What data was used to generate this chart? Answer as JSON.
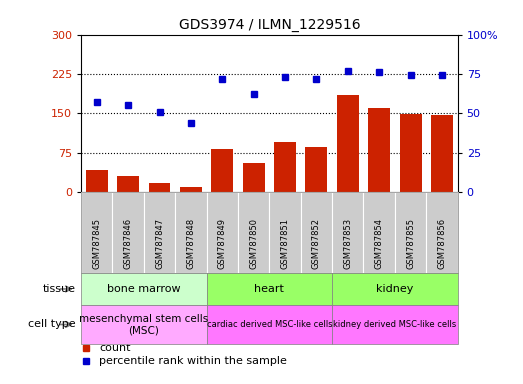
{
  "title": "GDS3974 / ILMN_1229516",
  "samples": [
    "GSM787845",
    "GSM787846",
    "GSM787847",
    "GSM787848",
    "GSM787849",
    "GSM787850",
    "GSM787851",
    "GSM787852",
    "GSM787853",
    "GSM787854",
    "GSM787855",
    "GSM787856"
  ],
  "counts": [
    42,
    30,
    18,
    10,
    82,
    55,
    95,
    85,
    185,
    160,
    148,
    147
  ],
  "percentiles": [
    57,
    55,
    51,
    44,
    72,
    62,
    73,
    72,
    77,
    76,
    74,
    74
  ],
  "bar_color": "#cc2200",
  "dot_color": "#0000cc",
  "left_ylim": [
    0,
    300
  ],
  "left_yticks": [
    0,
    75,
    150,
    225,
    300
  ],
  "right_ylim": [
    0,
    100
  ],
  "right_yticks": [
    0,
    25,
    50,
    75,
    100
  ],
  "right_yticklabels": [
    "0",
    "25",
    "50",
    "75",
    "100%"
  ],
  "tissue_groups": [
    {
      "label": "bone marrow",
      "start": 0,
      "end": 4,
      "color": "#ccffcc"
    },
    {
      "label": "heart",
      "start": 4,
      "end": 8,
      "color": "#99ff66"
    },
    {
      "label": "kidney",
      "start": 8,
      "end": 12,
      "color": "#99ff66"
    }
  ],
  "celltype_groups": [
    {
      "label": "mesenchymal stem cells\n(MSC)",
      "start": 0,
      "end": 4,
      "color": "#ffaaff"
    },
    {
      "label": "cardiac derived MSC-like cells",
      "start": 4,
      "end": 8,
      "color": "#ff77ff"
    },
    {
      "label": "kidney derived MSC-like cells",
      "start": 8,
      "end": 12,
      "color": "#ff77ff"
    }
  ],
  "sample_bg_color": "#cccccc",
  "legend_count_label": "count",
  "legend_pct_label": "percentile rank within the sample",
  "tissue_row_label": "tissue",
  "celltype_row_label": "cell type",
  "grid_yticks": [
    75,
    150,
    225
  ],
  "bar_width": 0.7
}
